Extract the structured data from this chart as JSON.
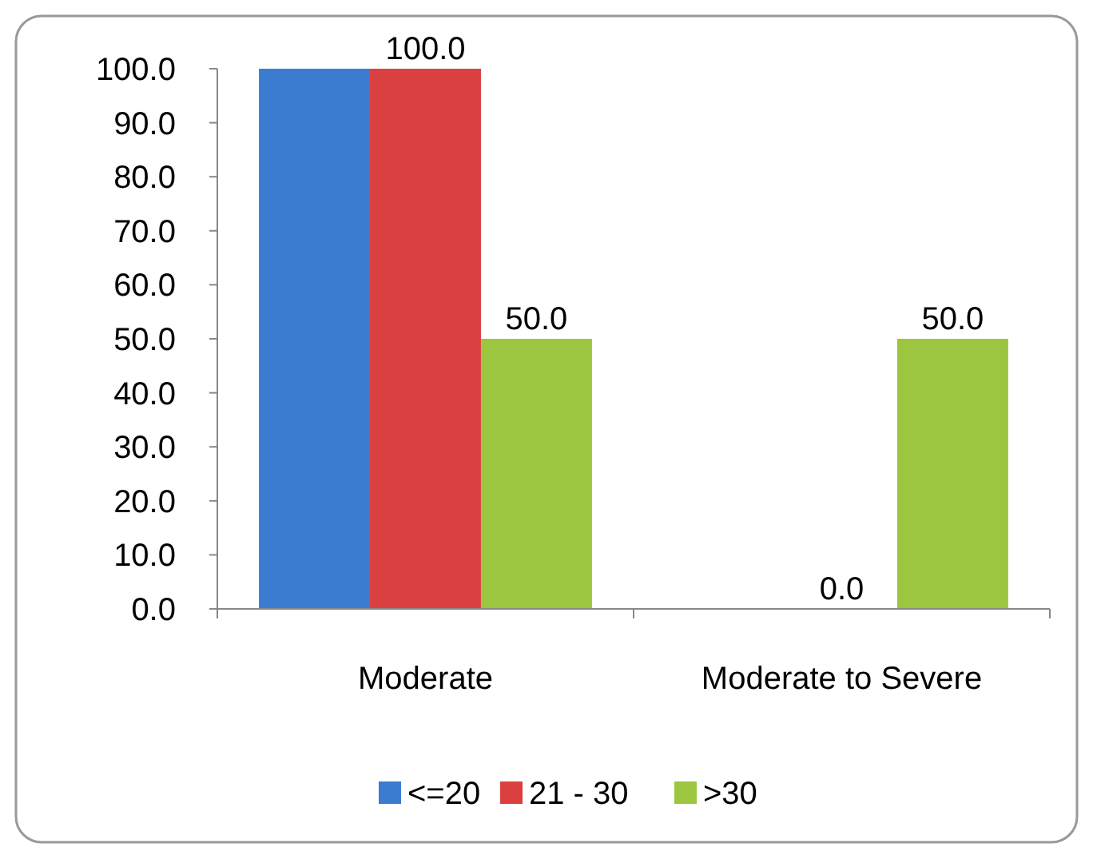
{
  "chart_data": {
    "type": "bar",
    "categories": [
      "Moderate",
      "Moderate to Severe"
    ],
    "series": [
      {
        "name": "<=20",
        "color": "#3b7bd0",
        "values": [
          100.0,
          0.0
        ],
        "value_labels": [
          null,
          null
        ]
      },
      {
        "name": "21 - 30",
        "color": "#d9403f",
        "values": [
          100.0,
          0.0
        ],
        "value_labels": [
          "100.0",
          "0.0"
        ]
      },
      {
        "name": ">30",
        "color": "#9cc63f",
        "values": [
          50.0,
          50.0
        ],
        "value_labels": [
          "50.0",
          "50.0"
        ]
      }
    ],
    "ylim": [
      0,
      100
    ],
    "yticks": [
      {
        "value": 0,
        "label": "0.0"
      },
      {
        "value": 10,
        "label": "10.0"
      },
      {
        "value": 20,
        "label": "20.0"
      },
      {
        "value": 30,
        "label": "30.0"
      },
      {
        "value": 40,
        "label": "40.0"
      },
      {
        "value": 50,
        "label": "50.0"
      },
      {
        "value": 60,
        "label": "60.0"
      },
      {
        "value": 70,
        "label": "70.0"
      },
      {
        "value": 80,
        "label": "80.0"
      },
      {
        "value": 90,
        "label": "90.0"
      },
      {
        "value": 100,
        "label": "100.0"
      }
    ],
    "grid": false,
    "legend": "bottom"
  }
}
